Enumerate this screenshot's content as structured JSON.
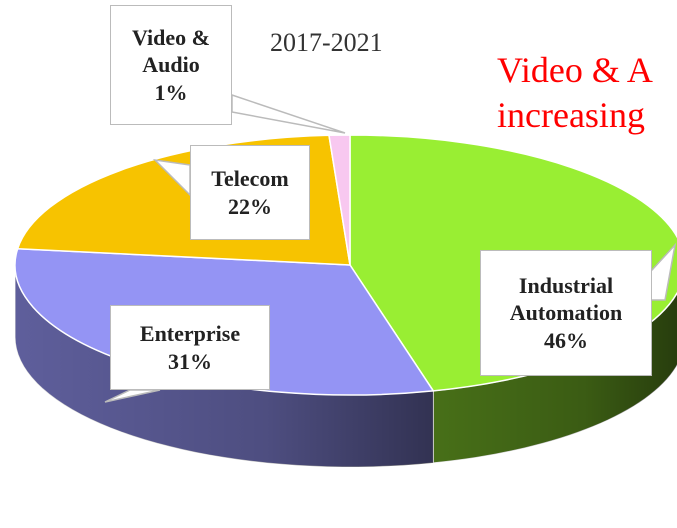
{
  "chart_data": {
    "type": "pie",
    "title": "2017-2021",
    "annotations": [
      "Video & A",
      "increasing"
    ],
    "categories": [
      "Industrial Automation",
      "Enterprise",
      "Telecom",
      "Video & Audio"
    ],
    "values": [
      46,
      31,
      22,
      1
    ],
    "value_labels": [
      "46%",
      "31%",
      "22%",
      "1%"
    ],
    "colors": [
      "#99ee33",
      "#9494f4",
      "#f7c300",
      "#f8c8f0"
    ]
  }
}
